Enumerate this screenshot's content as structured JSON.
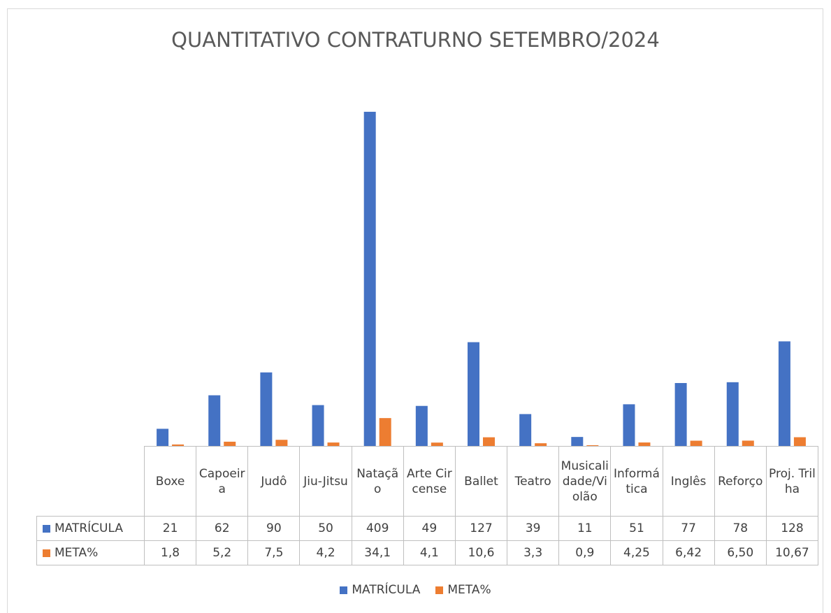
{
  "chart_data": {
    "type": "bar",
    "title": "QUANTITATIVO CONTRATURNO SETEMBRO/2024",
    "categories": [
      "Boxe",
      "Capoeira",
      "Judô",
      "Jiu-Jitsu",
      "Natação",
      "Arte Circense",
      "Ballet",
      "Teatro",
      "Musicalidade/Violão",
      "Informática",
      "Inglês",
      "Reforço",
      "Proj. Trilha"
    ],
    "series": [
      {
        "name": "MATRÍCULA",
        "color": "#4472c4",
        "values": [
          21,
          62,
          90,
          50,
          409,
          49,
          127,
          39,
          11,
          51,
          77,
          78,
          128
        ]
      },
      {
        "name": "META%",
        "color": "#ed7d31",
        "values": [
          1.8,
          5.2,
          7.5,
          4.2,
          34.1,
          4.1,
          10.6,
          3.3,
          0.9,
          4.25,
          6.42,
          6.5,
          10.67
        ],
        "value_labels": [
          "1,8",
          "5,2",
          "7,5",
          "4,2",
          "34,1",
          "4,1",
          "10,6",
          "3,3",
          "0,9",
          "4,25",
          "6,42",
          "6,50",
          "10,67"
        ]
      }
    ],
    "ylim": [
      0,
      450
    ],
    "legend": "bottom",
    "data_table": true
  }
}
